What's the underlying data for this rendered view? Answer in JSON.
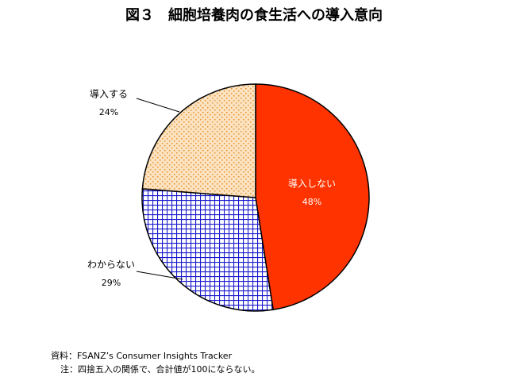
{
  "chart_data": {
    "type": "pie",
    "title": "図３　細胞培養肉の食生活への導入意向",
    "categories": [
      "導入しない",
      "わからない",
      "導入する"
    ],
    "values": [
      48,
      29,
      24
    ],
    "value_labels": [
      "48%",
      "29%",
      "24%"
    ],
    "colors": [
      "#ff3300",
      "#1a1acc",
      "#e8902a"
    ],
    "notes": [
      "資料：FSANZ’s Consumer Insights Tracker",
      "注：四捨五入の関係で、合計値が100にならない。"
    ]
  }
}
